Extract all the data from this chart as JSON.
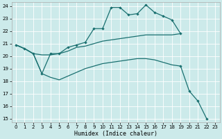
{
  "xlabel": "Humidex (Indice chaleur)",
  "bg_color": "#cceaea",
  "grid_color": "#ffffff",
  "line_color": "#1a7070",
  "xmin": 0,
  "xmax": 23,
  "ymin": 15,
  "ymax": 24,
  "line1_x": [
    0,
    1,
    2,
    3,
    4,
    5,
    6,
    7,
    8,
    9,
    10,
    11,
    12,
    13,
    14,
    15,
    16,
    17,
    18,
    19
  ],
  "line1_y": [
    20.9,
    20.6,
    20.2,
    18.6,
    20.2,
    20.2,
    20.7,
    20.9,
    21.1,
    22.2,
    22.2,
    23.9,
    23.9,
    23.3,
    23.4,
    24.1,
    23.5,
    23.2,
    22.9,
    21.8
  ],
  "line2_x": [
    0,
    1,
    2,
    3,
    4,
    5,
    6,
    7,
    8,
    9,
    10,
    11,
    12,
    13,
    14,
    15,
    16,
    17,
    18,
    19
  ],
  "line2_y": [
    20.9,
    20.6,
    20.2,
    20.1,
    20.1,
    20.2,
    20.4,
    20.7,
    20.8,
    21.0,
    21.2,
    21.3,
    21.4,
    21.5,
    21.6,
    21.7,
    21.7,
    21.7,
    21.7,
    21.8
  ],
  "line3_x": [
    0,
    1,
    2,
    3,
    4,
    5,
    6,
    7,
    8,
    9,
    10,
    11,
    12,
    13,
    14,
    15,
    16,
    17,
    18,
    19
  ],
  "line3_y": [
    20.9,
    20.6,
    20.2,
    18.6,
    18.3,
    18.1,
    18.4,
    18.7,
    19.0,
    19.2,
    19.4,
    19.5,
    19.6,
    19.7,
    19.8,
    19.8,
    19.7,
    19.5,
    19.3,
    19.2
  ],
  "line4_x": [
    19,
    20,
    21,
    22
  ],
  "line4_y": [
    19.2,
    17.2,
    16.4,
    15.0
  ]
}
